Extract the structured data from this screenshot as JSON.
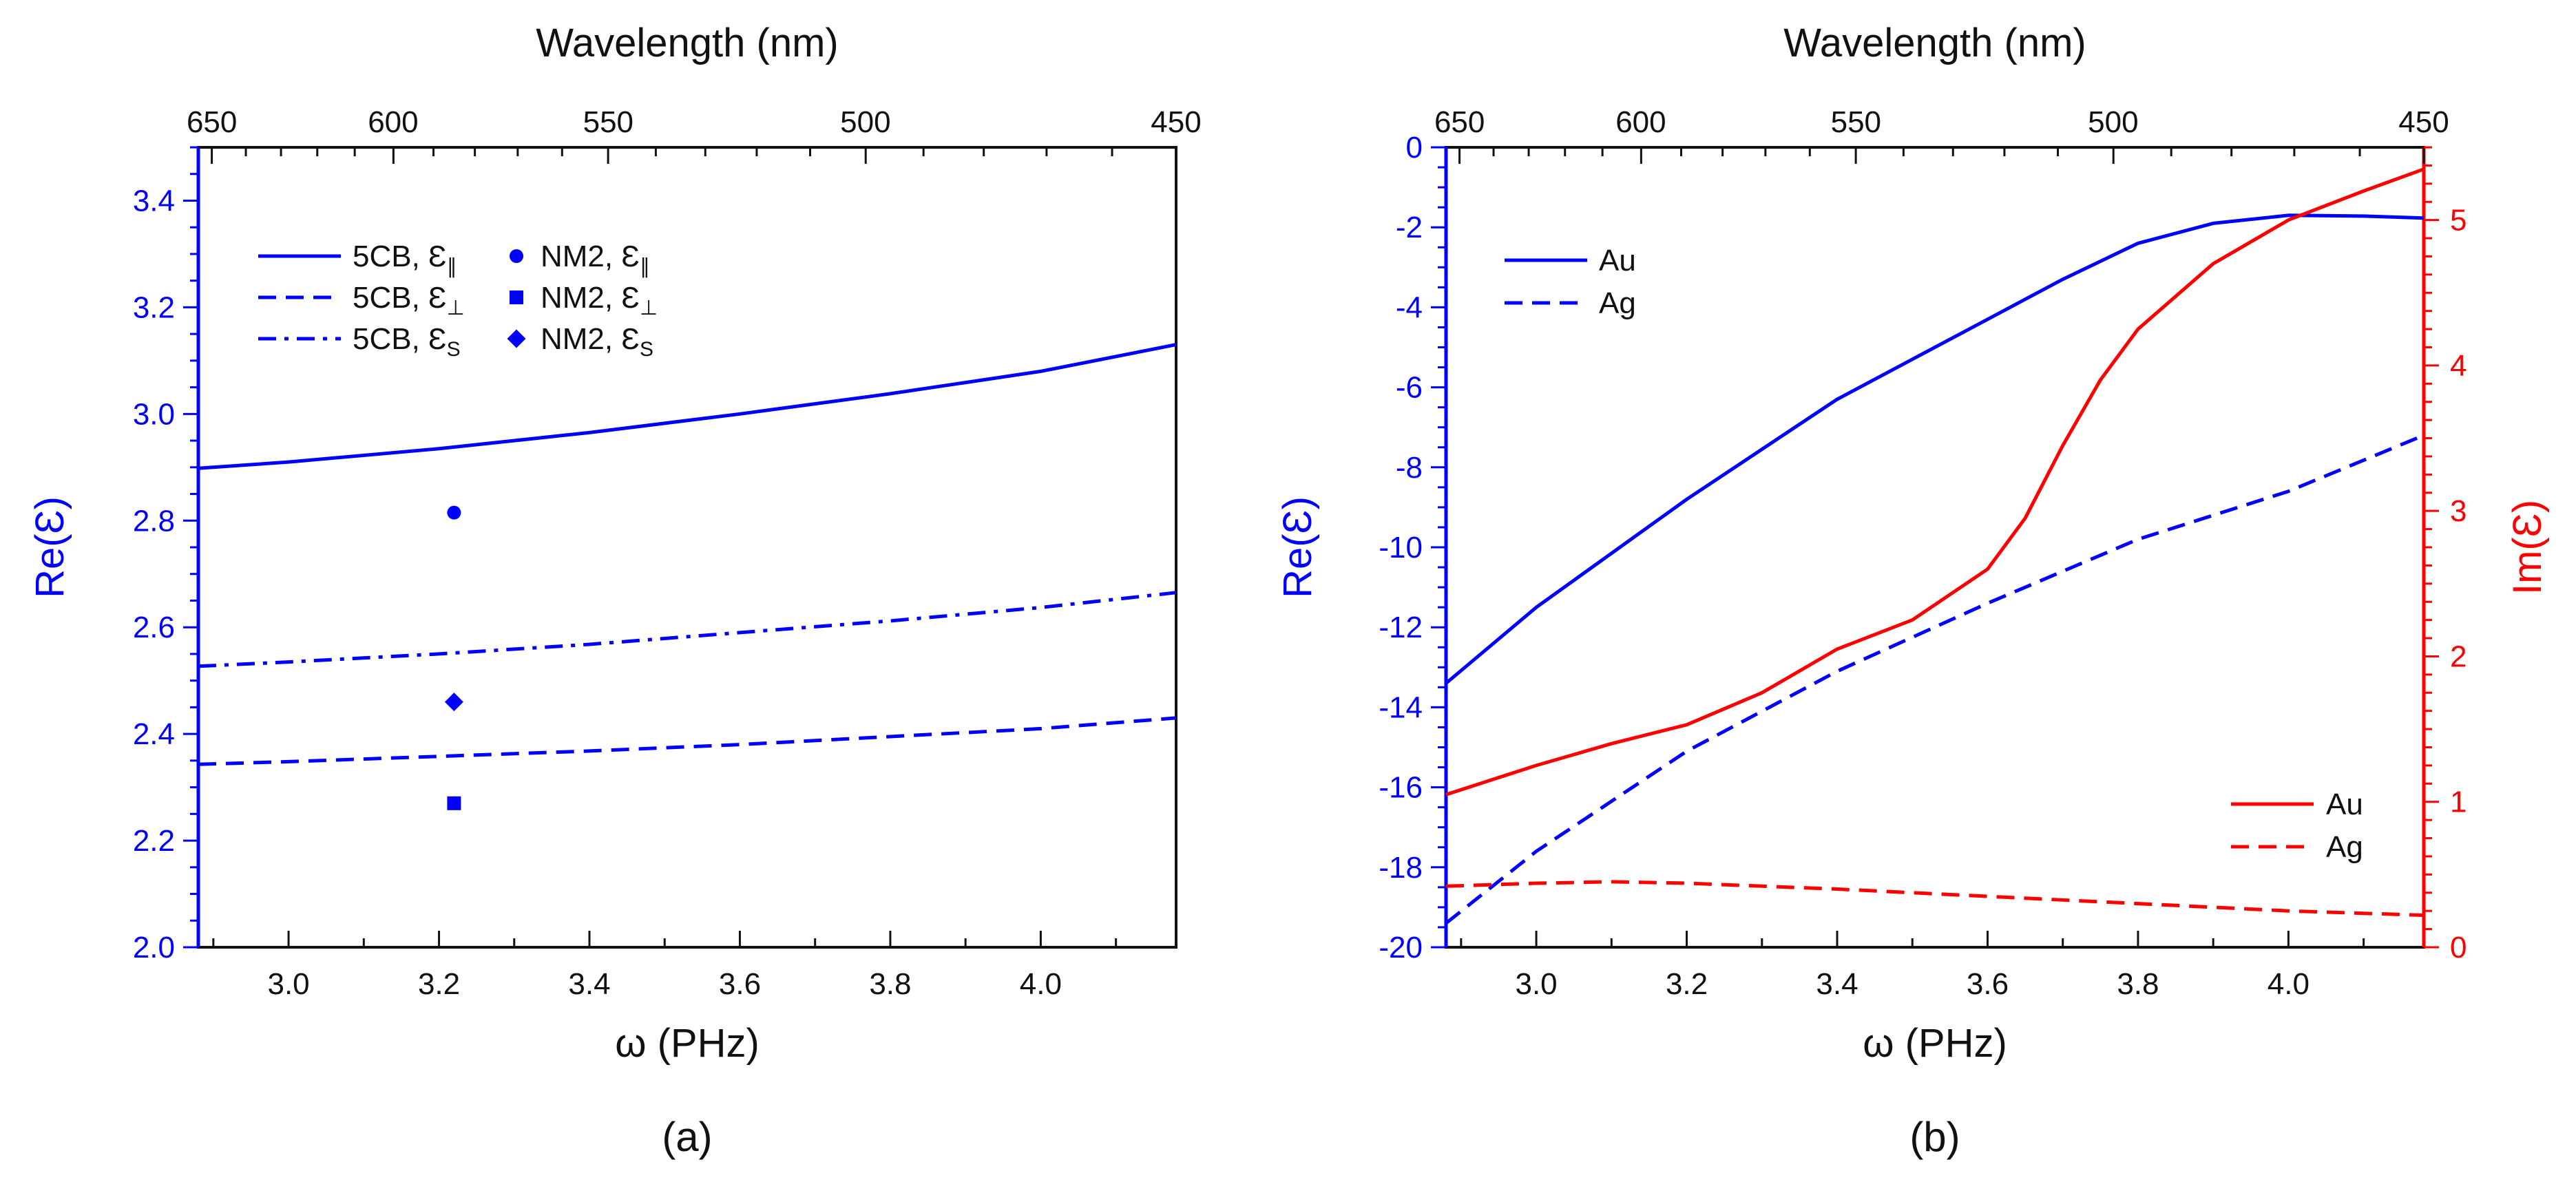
{
  "chart_data": [
    {
      "type": "line",
      "panel_label": "(a)",
      "xlabel": "ω (PHz)",
      "ylabel": "Re(Ɛ)",
      "top_xlabel": "Wavelength (nm)",
      "xlim": [
        2.88,
        4.18
      ],
      "ylim": [
        2.0,
        3.5
      ],
      "xticks": [
        "3.0",
        "3.2",
        "3.4",
        "3.6",
        "3.8",
        "4.0"
      ],
      "yticks": [
        "2.0",
        "2.2",
        "2.4",
        "2.6",
        "2.8",
        "3.0",
        "3.2",
        "3.4"
      ],
      "top_ticks": [
        {
          "label": "650",
          "omega": 2.898
        },
        {
          "label": "600",
          "omega": 3.139
        },
        {
          "label": "550",
          "omega": 3.425
        },
        {
          "label": "500",
          "omega": 3.767
        },
        {
          "label": "450",
          "omega": 4.186
        }
      ],
      "series": [
        {
          "name": "5CB, Ɛ∥",
          "style": "solid",
          "color": "#0000ff",
          "x": [
            2.88,
            3.0,
            3.2,
            3.4,
            3.6,
            3.8,
            4.0,
            4.18
          ],
          "y": [
            2.898,
            2.91,
            2.935,
            2.965,
            3.0,
            3.038,
            3.08,
            3.13
          ]
        },
        {
          "name": "5CB, Ɛ⊥",
          "style": "dash",
          "color": "#0000ff",
          "x": [
            2.88,
            3.0,
            3.2,
            3.4,
            3.6,
            3.8,
            4.0,
            4.18
          ],
          "y": [
            2.343,
            2.348,
            2.358,
            2.368,
            2.38,
            2.395,
            2.41,
            2.43
          ]
        },
        {
          "name": "5CB, Ɛs",
          "style": "dashdot",
          "color": "#0000ff",
          "x": [
            2.88,
            3.0,
            3.2,
            3.4,
            3.6,
            3.8,
            4.0,
            4.18
          ],
          "y": [
            2.527,
            2.535,
            2.55,
            2.568,
            2.59,
            2.612,
            2.637,
            2.665
          ]
        }
      ],
      "points": [
        {
          "name": "NM2, Ɛ∥",
          "marker": "circle",
          "x": 3.22,
          "y": 2.815
        },
        {
          "name": "NM2, Ɛ⊥",
          "marker": "square",
          "x": 3.22,
          "y": 2.27
        },
        {
          "name": "NM2, Ɛs",
          "marker": "diamond",
          "x": 3.22,
          "y": 2.46
        }
      ],
      "legend": [
        {
          "label_main": "5CB, Ɛ",
          "sub": "∥",
          "style": "solid"
        },
        {
          "label_main": "5CB, Ɛ",
          "sub": "⊥",
          "style": "dash"
        },
        {
          "label_main": "5CB, Ɛ",
          "sub": "S",
          "style": "dashdot"
        },
        {
          "label_main": "NM2, Ɛ",
          "sub": "∥",
          "marker": "circle"
        },
        {
          "label_main": "NM2, Ɛ",
          "sub": "⊥",
          "marker": "square"
        },
        {
          "label_main": "NM2, Ɛ",
          "sub": "S",
          "marker": "diamond"
        }
      ]
    },
    {
      "type": "line",
      "panel_label": "(b)",
      "xlabel": "ω (PHz)",
      "ylabel": "Re(Ɛ)",
      "ylabel_right": "Im(Ɛ)",
      "top_xlabel": "Wavelength (nm)",
      "xlim": [
        2.88,
        4.18
      ],
      "ylim": [
        -20,
        0
      ],
      "ylim_right": [
        0,
        5.5
      ],
      "xticks": [
        "3.0",
        "3.2",
        "3.4",
        "3.6",
        "3.8",
        "4.0"
      ],
      "yticks": [
        "-20",
        "-18",
        "-16",
        "-14",
        "-12",
        "-10",
        "-8",
        "-6",
        "-4",
        "-2",
        "0"
      ],
      "yticks_right": [
        "0",
        "1",
        "2",
        "3",
        "4",
        "5"
      ],
      "top_ticks": [
        {
          "label": "650",
          "omega": 2.898
        },
        {
          "label": "600",
          "omega": 3.139
        },
        {
          "label": "550",
          "omega": 3.425
        },
        {
          "label": "500",
          "omega": 3.767
        },
        {
          "label": "450",
          "omega": 4.186
        }
      ],
      "series": [
        {
          "name": "Au",
          "axis": "left",
          "style": "solid",
          "color": "#0000ff",
          "x": [
            2.88,
            3.0,
            3.2,
            3.4,
            3.6,
            3.7,
            3.8,
            3.9,
            4.0,
            4.1,
            4.18
          ],
          "y": [
            -13.4,
            -11.5,
            -8.8,
            -6.3,
            -4.3,
            -3.3,
            -2.4,
            -1.9,
            -1.7,
            -1.72,
            -1.77
          ]
        },
        {
          "name": "Ag",
          "axis": "left",
          "style": "dash",
          "color": "#0000ff",
          "x": [
            2.88,
            3.0,
            3.2,
            3.4,
            3.6,
            3.8,
            4.0,
            4.18
          ],
          "y": [
            -19.4,
            -17.6,
            -15.1,
            -13.1,
            -11.4,
            -9.8,
            -8.6,
            -7.2
          ]
        },
        {
          "name": "Au",
          "axis": "right",
          "style": "solid",
          "color": "#ff0000",
          "x": [
            2.88,
            3.0,
            3.1,
            3.2,
            3.3,
            3.4,
            3.5,
            3.6,
            3.65,
            3.7,
            3.75,
            3.8,
            3.9,
            4.0,
            4.1,
            4.18
          ],
          "y": [
            1.05,
            1.25,
            1.4,
            1.53,
            1.75,
            2.05,
            2.25,
            2.6,
            2.95,
            3.45,
            3.9,
            4.25,
            4.7,
            5.0,
            5.2,
            5.35
          ]
        },
        {
          "name": "Ag",
          "axis": "right",
          "style": "dash",
          "color": "#ff0000",
          "x": [
            2.88,
            3.0,
            3.1,
            3.2,
            3.4,
            3.6,
            3.8,
            4.0,
            4.18
          ],
          "y": [
            0.42,
            0.44,
            0.45,
            0.44,
            0.4,
            0.35,
            0.3,
            0.25,
            0.22
          ]
        }
      ],
      "legend_left": [
        {
          "label": "Au",
          "style": "solid",
          "color": "#0000ff"
        },
        {
          "label": "Ag",
          "style": "dash",
          "color": "#0000ff"
        }
      ],
      "legend_right": [
        {
          "label": "Au",
          "style": "solid",
          "color": "#ff0000"
        },
        {
          "label": "Ag",
          "style": "dash",
          "color": "#ff0000"
        }
      ]
    }
  ]
}
